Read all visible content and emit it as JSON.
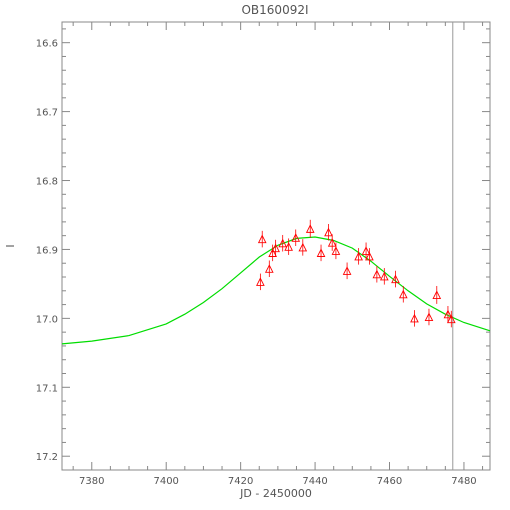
{
  "chart_data": {
    "type": "scatter",
    "title": "OB160092I",
    "xlabel": "JD - 2450000",
    "ylabel": "I",
    "xlim": [
      7372,
      7487
    ],
    "ylim": [
      16.57,
      17.22
    ],
    "y_inverted": true,
    "x_ticks": [
      7380,
      7400,
      7420,
      7440,
      7460,
      7480
    ],
    "x_tick_labels": [
      "7380",
      "7400",
      "7420",
      "7440",
      "7460",
      "7480"
    ],
    "y_ticks": [
      16.6,
      16.7,
      16.8,
      16.9,
      17.0,
      17.1,
      17.2
    ],
    "y_tick_labels": [
      "16.6",
      "16.7",
      "16.8",
      "16.9",
      "17.0",
      "17.1",
      "17.2"
    ],
    "vertical_line_x": 7477,
    "grid": false,
    "series": [
      {
        "kind": "points",
        "marker": "open-triangle",
        "color": "#ff0000",
        "x": [
          7425.3,
          7425.8,
          7427.7,
          7428.6,
          7429.4,
          7431.3,
          7432.9,
          7434.8,
          7436.7,
          7438.7,
          7441.6,
          7443.6,
          7444.6,
          7445.6,
          7448.6,
          7451.7,
          7453.7,
          7454.6,
          7456.6,
          7458.6,
          7461.6,
          7463.7,
          7466.7,
          7470.6,
          7472.7,
          7475.7,
          7476.6
        ],
        "y": [
          16.947,
          16.885,
          16.928,
          16.905,
          16.898,
          16.891,
          16.896,
          16.883,
          16.897,
          16.87,
          16.905,
          16.875,
          16.89,
          16.902,
          16.931,
          16.91,
          16.902,
          16.91,
          16.936,
          16.939,
          16.943,
          16.965,
          17.0,
          16.998,
          16.966,
          16.994,
          17.001
        ],
        "y_err": [
          0.012,
          0.012,
          0.012,
          0.012,
          0.012,
          0.012,
          0.012,
          0.012,
          0.012,
          0.013,
          0.012,
          0.012,
          0.012,
          0.012,
          0.012,
          0.012,
          0.012,
          0.012,
          0.012,
          0.012,
          0.012,
          0.012,
          0.012,
          0.012,
          0.013,
          0.012,
          0.012
        ]
      },
      {
        "kind": "model-curve",
        "color": "#00dd00",
        "x": [
          7372,
          7380,
          7390,
          7400,
          7405,
          7410,
          7415,
          7420,
          7425,
          7430,
          7435,
          7440,
          7445,
          7450,
          7455,
          7460,
          7465,
          7470,
          7475,
          7480,
          7487
        ],
        "y": [
          17.037,
          17.033,
          17.025,
          17.008,
          16.994,
          16.977,
          16.957,
          16.934,
          16.911,
          16.894,
          16.884,
          16.882,
          16.887,
          16.898,
          16.917,
          16.939,
          16.96,
          16.979,
          16.994,
          17.006,
          17.018
        ]
      }
    ]
  }
}
